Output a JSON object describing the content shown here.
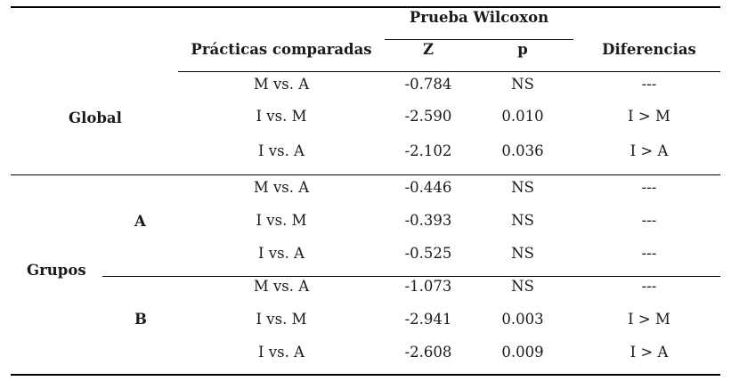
{
  "header": {
    "test_group": "Prueba Wilcoxon",
    "practices": "Prácticas comparadas",
    "z": "Z",
    "p": "p",
    "differences": "Diferencias"
  },
  "labels": {
    "global": "Global",
    "groups": "Grupos",
    "group_a": "A",
    "group_b": "B"
  },
  "rows": [
    {
      "comparison": "M vs. A",
      "z": "-0.784",
      "p": "NS",
      "diff": "---"
    },
    {
      "comparison": "I vs. M",
      "z": "-2.590",
      "p": "0.010",
      "diff": "I > M"
    },
    {
      "comparison": "I vs. A",
      "z": "-2.102",
      "p": "0.036",
      "diff": "I > A"
    },
    {
      "comparison": "M vs. A",
      "z": "-0.446",
      "p": "NS",
      "diff": "---"
    },
    {
      "comparison": "I vs. M",
      "z": "-0.393",
      "p": "NS",
      "diff": "---"
    },
    {
      "comparison": "I vs. A",
      "z": "-0.525",
      "p": "NS",
      "diff": "---"
    },
    {
      "comparison": "M vs. A",
      "z": "-1.073",
      "p": "NS",
      "diff": "---"
    },
    {
      "comparison": "I vs. M",
      "z": "-2.941",
      "p": "0.003",
      "diff": "I > M"
    },
    {
      "comparison": "I vs. A",
      "z": "-2.608",
      "p": "0.009",
      "diff": "I > A"
    }
  ]
}
